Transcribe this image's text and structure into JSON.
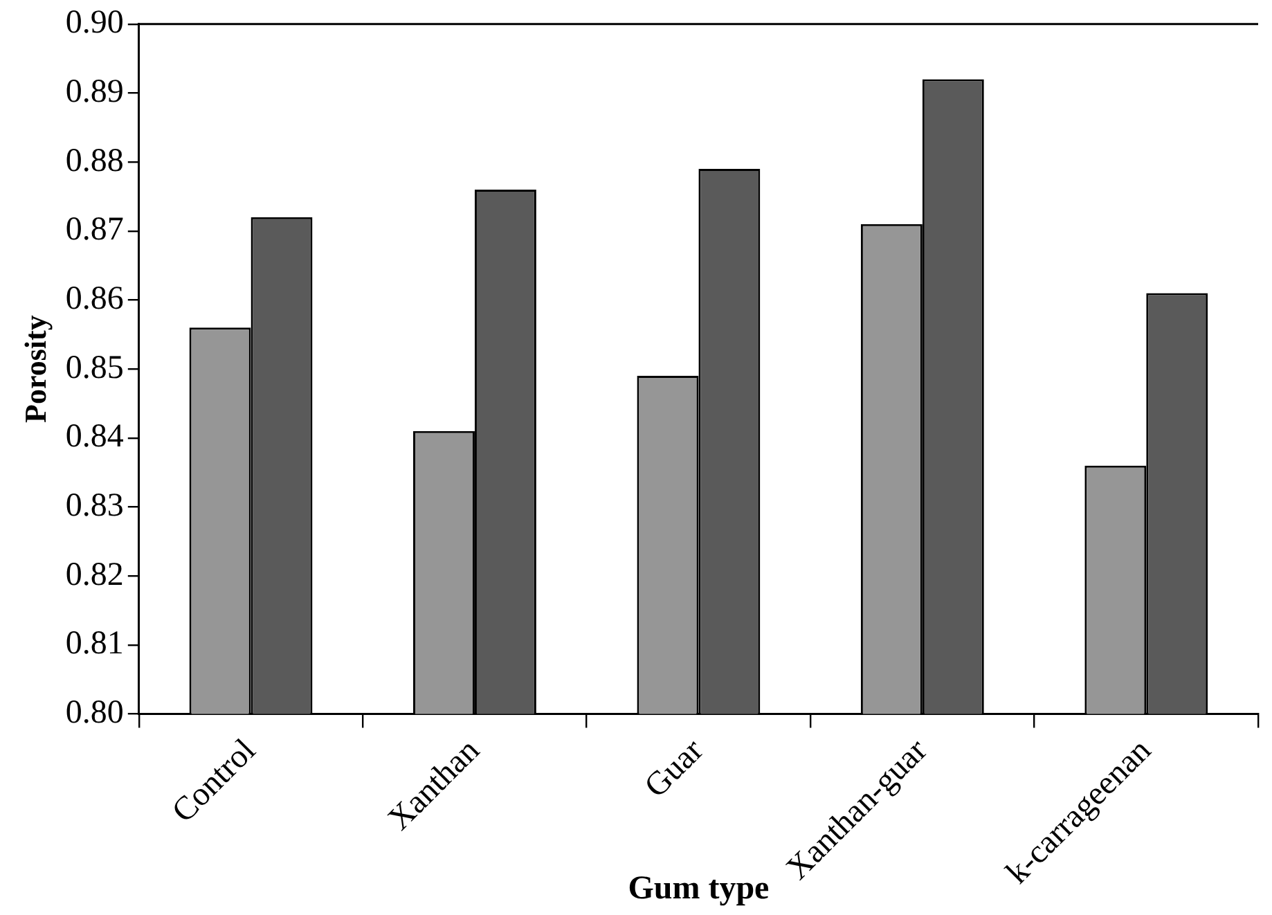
{
  "chart_data": {
    "type": "bar",
    "xlabel": "Gum type",
    "ylabel": "Porosity",
    "categories": [
      "Control",
      "Xanthan",
      "Guar",
      "Xanthan-guar",
      "k-carrageenan"
    ],
    "series": [
      {
        "color": "#969696",
        "values": [
          0.856,
          0.841,
          0.849,
          0.871,
          0.836
        ]
      },
      {
        "color": "#5a5a5a",
        "values": [
          0.872,
          0.876,
          0.879,
          0.892,
          0.861
        ]
      }
    ],
    "ylim": [
      0.8,
      0.9
    ],
    "yticks": [
      {
        "value": 0.8,
        "label": "0.80"
      },
      0.81,
      0.82,
      0.83,
      0.84,
      0.85,
      0.86,
      0.87,
      0.88,
      0.89,
      {
        "value": 0.9,
        "label": "0.90"
      }
    ],
    "grid": false,
    "legend": false
  }
}
